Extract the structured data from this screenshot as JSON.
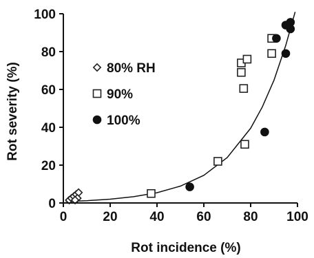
{
  "chart_data": {
    "type": "scatter",
    "xlabel": "Rot incidence (%)",
    "ylabel": "Rot severity (%)",
    "xlim": [
      0,
      100
    ],
    "ylim": [
      0,
      100
    ],
    "xticks": [
      0,
      20,
      40,
      60,
      80,
      100
    ],
    "yticks": [
      0,
      20,
      40,
      60,
      80,
      100
    ],
    "legend_position": "upper-left",
    "series": [
      {
        "name": "80% RH",
        "marker": "diamond-open",
        "points": [
          [
            2.5,
            1.5
          ],
          [
            3.5,
            2.5
          ],
          [
            4.5,
            3.5
          ],
          [
            5.5,
            4.5
          ],
          [
            6.5,
            5.5
          ],
          [
            6.0,
            2.5
          ],
          [
            5.0,
            1.5
          ]
        ]
      },
      {
        "name": "90%",
        "marker": "square-open",
        "points": [
          [
            37.5,
            5
          ],
          [
            66,
            22
          ],
          [
            76,
            74
          ],
          [
            76,
            69
          ],
          [
            78.5,
            76
          ],
          [
            77,
            60.5
          ],
          [
            77.5,
            31
          ],
          [
            89,
            87
          ],
          [
            89,
            79
          ]
        ]
      },
      {
        "name": "100%",
        "marker": "circle-filled",
        "points": [
          [
            54,
            8.5
          ],
          [
            86,
            37.5
          ],
          [
            91,
            87
          ],
          [
            95,
            79
          ],
          [
            95,
            94
          ],
          [
            97,
            95.5
          ],
          [
            97,
            92
          ]
        ]
      }
    ],
    "fit_curve": {
      "type": "exponential",
      "points": [
        [
          1,
          0.8
        ],
        [
          10,
          1.2
        ],
        [
          20,
          2
        ],
        [
          30,
          3.3
        ],
        [
          40,
          5.4
        ],
        [
          50,
          8.9
        ],
        [
          60,
          14.6
        ],
        [
          70,
          24
        ],
        [
          80,
          39.5
        ],
        [
          85,
          50.8
        ],
        [
          90,
          65
        ],
        [
          95,
          83.3
        ],
        [
          98,
          96.5
        ],
        [
          99,
          101
        ]
      ]
    }
  }
}
